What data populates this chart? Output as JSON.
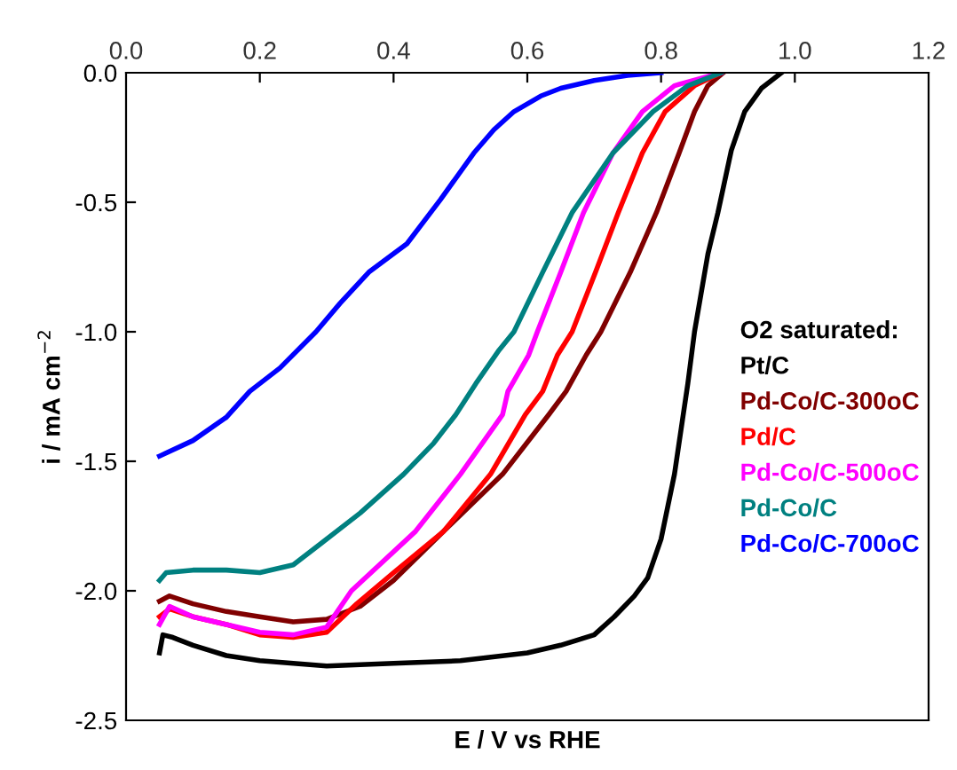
{
  "chart_data": {
    "type": "line",
    "xlabel": "E / V vs RHE",
    "ylabel": "i / mA cm$^{−2}$",
    "legend_title": "O2 saturated:",
    "xlim": [
      0,
      1.2
    ],
    "xticks": [
      {
        "value": 0,
        "label": "0.0"
      },
      {
        "value": 0.2,
        "label": "0.2"
      },
      {
        "value": 0.4,
        "label": "0.4"
      },
      {
        "value": 0.6,
        "label": "0.6"
      },
      {
        "value": 0.8,
        "label": "0.8"
      },
      {
        "value": 1.0,
        "label": "1.0"
      },
      {
        "value": 1.2,
        "label": "1.2"
      }
    ],
    "ylim": [
      -2.5,
      0
    ],
    "yticks": [
      {
        "value": 0,
        "label": "0.0"
      },
      {
        "value": -0.5,
        "label": "-0.5"
      },
      {
        "value": -1.0,
        "label": "-1.0"
      },
      {
        "value": -1.5,
        "label": "-1.5"
      },
      {
        "value": -2.0,
        "label": "-2.0"
      },
      {
        "value": -2.5,
        "label": "-2.5"
      }
    ],
    "grid": false,
    "marker": "none",
    "line_style": "solid",
    "series": [
      {
        "name": "Pt/C",
        "color": "#000000",
        "x": [
          0.05,
          0.055,
          0.07,
          0.1,
          0.15,
          0.2,
          0.3,
          0.4,
          0.5,
          0.6,
          0.65,
          0.7,
          0.73,
          0.76,
          0.78,
          0.8,
          0.82,
          0.84,
          0.85,
          0.87,
          0.885,
          0.905,
          0.925,
          0.95,
          0.98
        ],
        "values": [
          -2.24,
          -2.17,
          -2.18,
          -2.21,
          -2.25,
          -2.27,
          -2.29,
          -2.28,
          -2.27,
          -2.24,
          -2.21,
          -2.17,
          -2.1,
          -2.02,
          -1.95,
          -1.8,
          -1.55,
          -1.2,
          -1.0,
          -0.7,
          -0.54,
          -0.3,
          -0.15,
          -0.06,
          0
        ]
      },
      {
        "name": "Pd-Co/C-300oC",
        "color": "#800000",
        "x": [
          0.05,
          0.065,
          0.1,
          0.15,
          0.2,
          0.25,
          0.3,
          0.35,
          0.4,
          0.475,
          0.563,
          0.632,
          0.658,
          0.688,
          0.71,
          0.754,
          0.793,
          0.827,
          0.85,
          0.87,
          0.893
        ],
        "values": [
          -2.04,
          -2.02,
          -2.05,
          -2.08,
          -2.1,
          -2.12,
          -2.11,
          -2.06,
          -1.96,
          -1.77,
          -1.55,
          -1.32,
          -1.23,
          -1.09,
          -1.0,
          -0.77,
          -0.54,
          -0.31,
          -0.15,
          -0.05,
          0
        ]
      },
      {
        "name": "Pd/C",
        "color": "#ff0000",
        "x": [
          0.05,
          0.065,
          0.1,
          0.15,
          0.2,
          0.25,
          0.3,
          0.345,
          0.4,
          0.475,
          0.545,
          0.597,
          0.623,
          0.645,
          0.667,
          0.702,
          0.736,
          0.772,
          0.806,
          0.85,
          0.89
        ],
        "values": [
          -2.1,
          -2.07,
          -2.1,
          -2.13,
          -2.17,
          -2.18,
          -2.16,
          -2.05,
          -1.93,
          -1.77,
          -1.55,
          -1.32,
          -1.23,
          -1.09,
          -1.0,
          -0.77,
          -0.54,
          -0.31,
          -0.15,
          -0.05,
          0
        ]
      },
      {
        "name": "Pd-Co/C-500oC",
        "color": "#ff00ff",
        "x": [
          0.05,
          0.065,
          0.1,
          0.15,
          0.2,
          0.25,
          0.3,
          0.337,
          0.433,
          0.5,
          0.563,
          0.571,
          0.602,
          0.615,
          0.65,
          0.684,
          0.728,
          0.772,
          0.82,
          0.89
        ],
        "values": [
          -2.13,
          -2.06,
          -2.1,
          -2.13,
          -2.16,
          -2.17,
          -2.14,
          -2.0,
          -1.77,
          -1.55,
          -1.32,
          -1.23,
          -1.09,
          -1.0,
          -0.77,
          -0.54,
          -0.31,
          -0.15,
          -0.05,
          0
        ]
      },
      {
        "name": "Pd-Co/C",
        "color": "#008080",
        "x": [
          0.05,
          0.06,
          0.1,
          0.15,
          0.2,
          0.25,
          0.29,
          0.35,
          0.415,
          0.46,
          0.493,
          0.523,
          0.558,
          0.58,
          0.623,
          0.667,
          0.728,
          0.788,
          0.84,
          0.89
        ],
        "values": [
          -1.96,
          -1.93,
          -1.92,
          -1.92,
          -1.93,
          -1.9,
          -1.82,
          -1.7,
          -1.55,
          -1.43,
          -1.32,
          -1.2,
          -1.07,
          -1.0,
          -0.77,
          -0.54,
          -0.31,
          -0.15,
          -0.05,
          0
        ]
      },
      {
        "name": "Pd-Co/C-700oC",
        "color": "#0000ff",
        "x": [
          0.05,
          0.1,
          0.15,
          0.185,
          0.23,
          0.284,
          0.32,
          0.363,
          0.42,
          0.47,
          0.52,
          0.55,
          0.58,
          0.62,
          0.65,
          0.7,
          0.75,
          0.8
        ],
        "values": [
          -1.48,
          -1.42,
          -1.33,
          -1.23,
          -1.14,
          -1.0,
          -0.89,
          -0.77,
          -0.66,
          -0.49,
          -0.31,
          -0.22,
          -0.15,
          -0.09,
          -0.06,
          -0.03,
          -0.01,
          0
        ]
      }
    ]
  }
}
